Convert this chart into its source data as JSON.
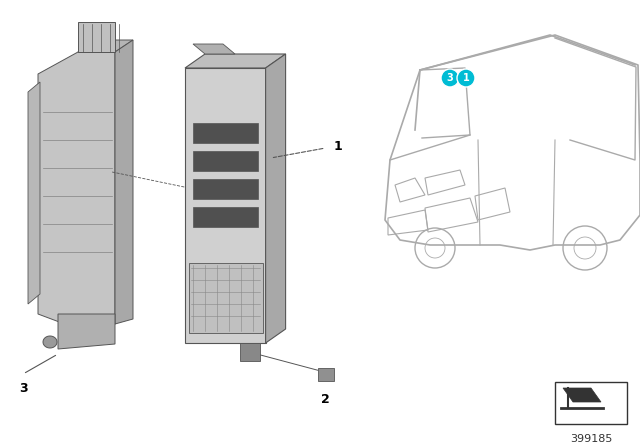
{
  "bg_color": "#ffffff",
  "label_color": "#000000",
  "part_number": "399185",
  "callout_colors": {
    "1": "#00bcd4",
    "2": "#00bcd4",
    "3": "#00bcd4"
  },
  "labels": [
    "1",
    "2",
    "3"
  ],
  "line_color": "#555555",
  "car_line_color": "#aaaaaa",
  "title": ""
}
